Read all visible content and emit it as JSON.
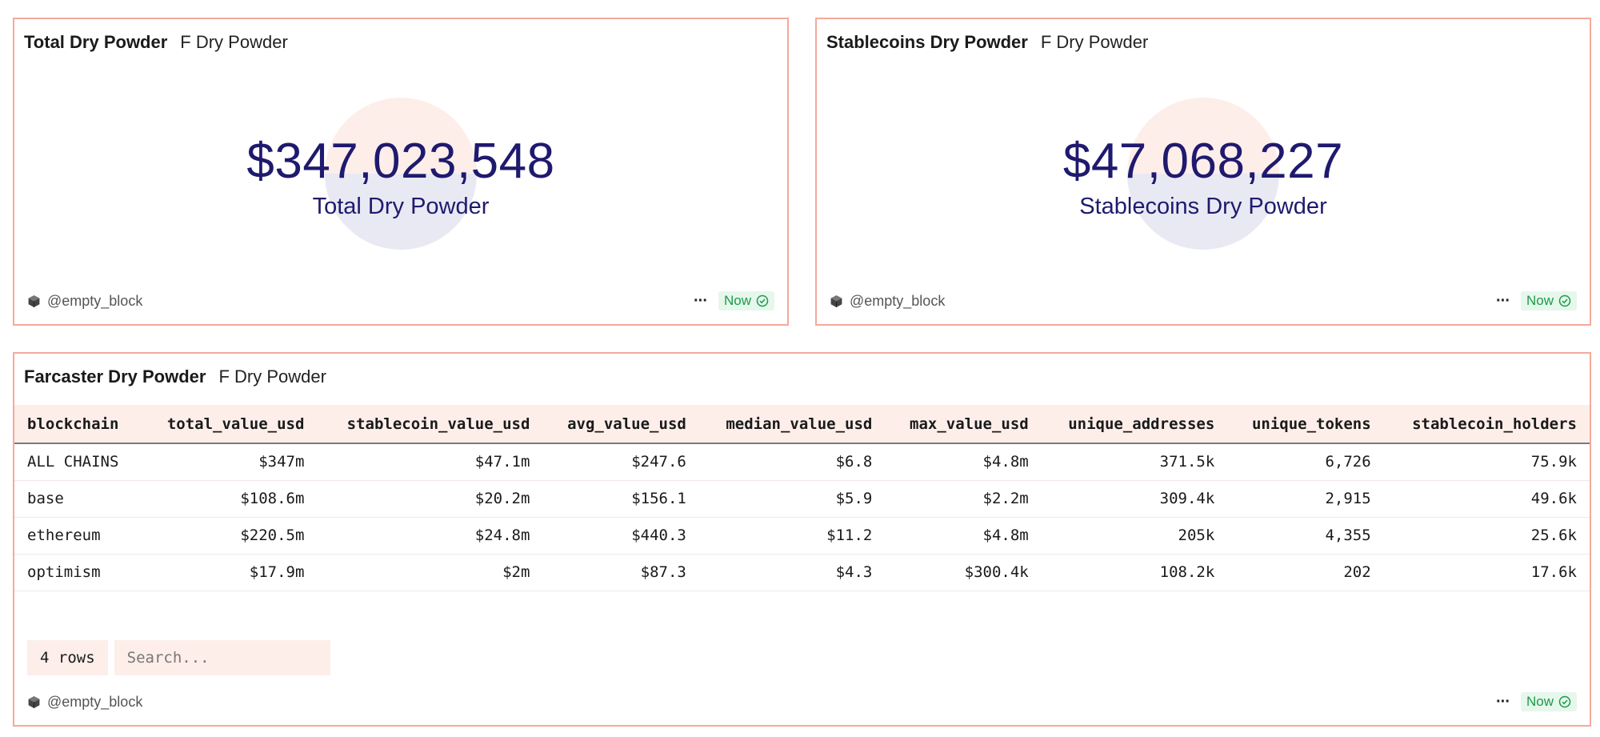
{
  "cards": {
    "total": {
      "title": "Total Dry Powder",
      "subtitle": "F Dry Powder",
      "value": "$347,023,548",
      "label": "Total Dry Powder",
      "author": "@empty_block",
      "status": "Now"
    },
    "stable": {
      "title": "Stablecoins Dry Powder",
      "subtitle": "F Dry Powder",
      "value": "$47,068,227",
      "label": "Stablecoins Dry Powder",
      "author": "@empty_block",
      "status": "Now"
    },
    "table": {
      "title": "Farcaster Dry Powder",
      "subtitle": "F Dry Powder",
      "author": "@empty_block",
      "status": "Now",
      "row_count": "4 rows",
      "search_placeholder": "Search...",
      "columns": [
        "blockchain",
        "total_value_usd",
        "stablecoin_value_usd",
        "avg_value_usd",
        "median_value_usd",
        "max_value_usd",
        "unique_addresses",
        "unique_tokens",
        "stablecoin_holders"
      ],
      "rows": [
        [
          "ALL CHAINS",
          "$347m",
          "$47.1m",
          "$247.6",
          "$6.8",
          "$4.8m",
          "371.5k",
          "6,726",
          "75.9k"
        ],
        [
          "base",
          "$108.6m",
          "$20.2m",
          "$156.1",
          "$5.9",
          "$2.2m",
          "309.4k",
          "2,915",
          "49.6k"
        ],
        [
          "ethereum",
          "$220.5m",
          "$24.8m",
          "$440.3",
          "$11.2",
          "$4.8m",
          "205k",
          "4,355",
          "25.6k"
        ],
        [
          "optimism",
          "$17.9m",
          "$2m",
          "$87.3",
          "$4.3",
          "$300.4k",
          "108.2k",
          "202",
          "17.6k"
        ]
      ]
    }
  },
  "colors": {
    "border": "#f4a99a",
    "accent_light": "#fdeeea",
    "counter_text": "#1f1a6e",
    "status_green": "#1c9a4a"
  }
}
